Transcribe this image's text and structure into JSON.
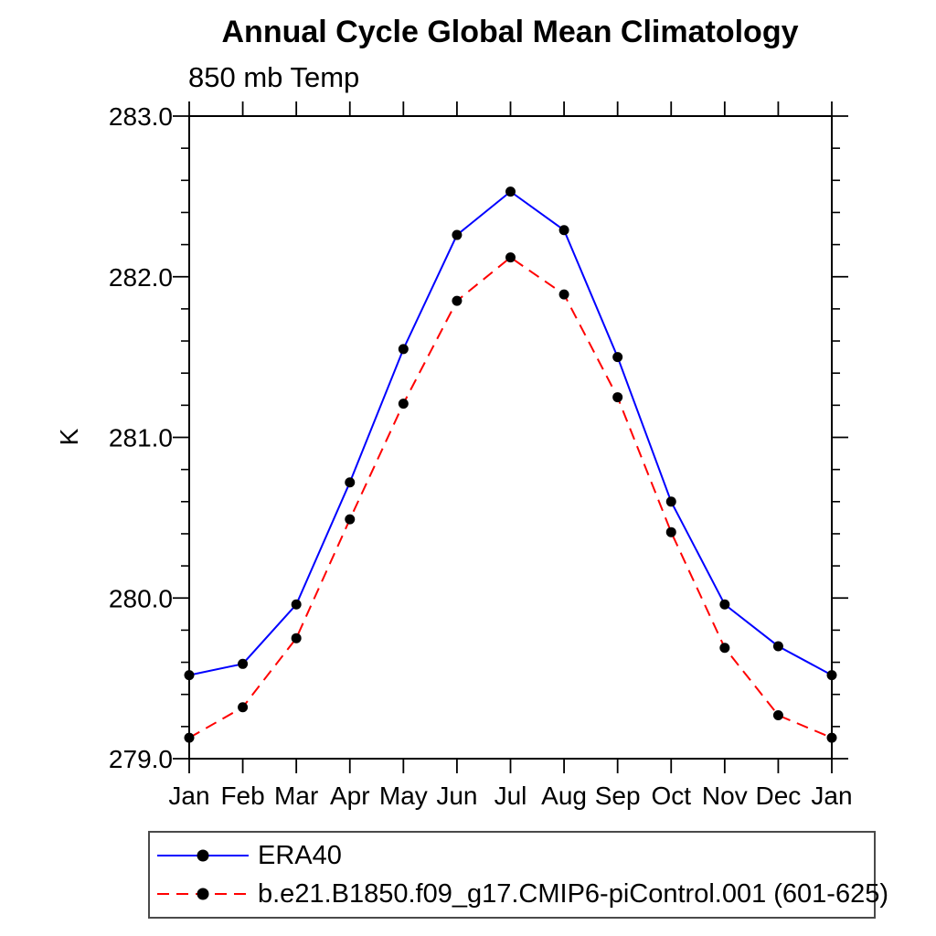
{
  "chart_data": {
    "type": "line",
    "title": "Annual Cycle Global Mean Climatology",
    "subtitle": "850 mb Temp",
    "ylabel": "K",
    "ylim": [
      279.0,
      283.0
    ],
    "ytick_major": [
      279.0,
      280.0,
      281.0,
      282.0,
      283.0
    ],
    "ytick_minor_step": 0.2,
    "grid": false,
    "legend_position": "bottom-left-box",
    "categories": [
      "Jan",
      "Feb",
      "Mar",
      "Apr",
      "May",
      "Jun",
      "Jul",
      "Aug",
      "Sep",
      "Oct",
      "Nov",
      "Dec",
      "Jan"
    ],
    "series": [
      {
        "name": "ERA40",
        "color": "#0000ff",
        "line_style": "solid",
        "marker": "filled-circle",
        "marker_color": "#000000",
        "values": [
          279.52,
          279.59,
          279.96,
          280.72,
          281.55,
          282.26,
          282.53,
          282.29,
          281.5,
          280.6,
          279.96,
          279.7,
          279.52
        ]
      },
      {
        "name": "b.e21.B1850.f09_g17.CMIP6-piControl.001 (601-625)",
        "color": "#ff0000",
        "line_style": "dashed",
        "marker": "filled-circle",
        "marker_color": "#000000",
        "values": [
          279.13,
          279.32,
          279.75,
          280.49,
          281.21,
          281.85,
          282.12,
          281.89,
          281.25,
          280.41,
          279.69,
          279.27,
          279.13
        ]
      }
    ],
    "axis_color": "#000000"
  }
}
